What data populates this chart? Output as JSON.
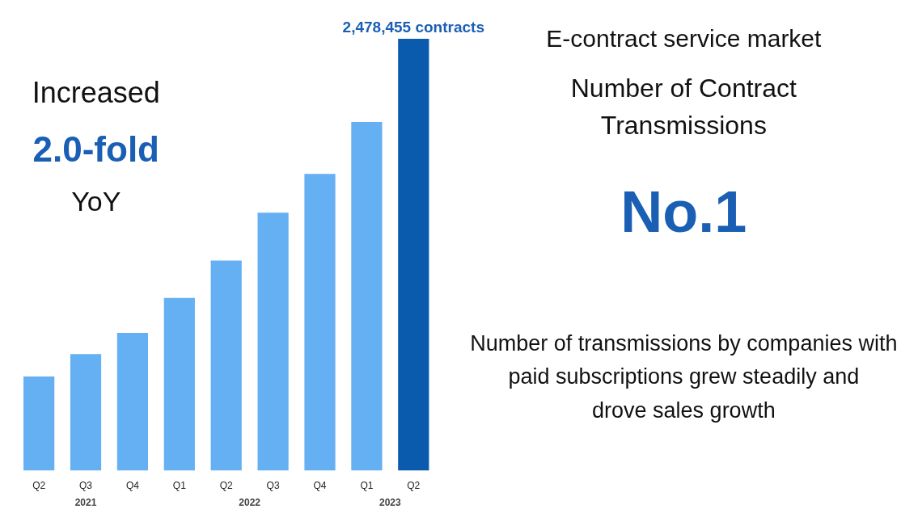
{
  "chart_data": {
    "type": "bar",
    "tick_labels": "x",
    "title": "E-contract service market",
    "subtitle": "Number of Contract Transmissions",
    "categories": [
      "Q2",
      "Q3",
      "Q4",
      "Q1",
      "Q2",
      "Q3",
      "Q4",
      "Q1",
      "Q2"
    ],
    "values": [
      540000,
      669000,
      791000,
      991000,
      1205000,
      1480000,
      1703000,
      2000000,
      2478455
    ],
    "colors": [
      "#64b0f3",
      "#64b0f3",
      "#64b0f3",
      "#64b0f3",
      "#64b0f3",
      "#64b0f3",
      "#64b0f3",
      "#64b0f3",
      "#0a5aad"
    ],
    "value_labels": [
      null,
      null,
      null,
      null,
      null,
      null,
      null,
      null,
      "2,478,455 contracts"
    ],
    "annotations": [
      "2021",
      "2022",
      "2023",
      "Increased",
      "2.0-fold",
      "YoY",
      "No.1",
      "Number of transmissions by companies with paid subscriptions grew steadily and drove sales growth"
    ],
    "grid": false
  }
}
